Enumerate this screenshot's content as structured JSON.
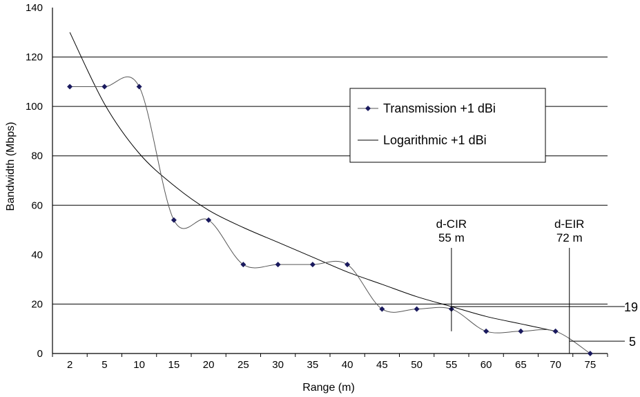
{
  "chart_data": {
    "type": "line",
    "xlabel": "Range (m)",
    "ylabel": "Bandwidth (Mbps)",
    "ylim": [
      0,
      140
    ],
    "yticks": [
      0,
      20,
      40,
      60,
      80,
      100,
      120,
      140
    ],
    "grid": "horizontal gridlines at 20, 60, 80, 100, 120",
    "categories": [
      "2",
      "5",
      "10",
      "15",
      "20",
      "25",
      "30",
      "35",
      "40",
      "45",
      "50",
      "55",
      "60",
      "65",
      "70",
      "75"
    ],
    "series": [
      {
        "name": "Transmission +1 dBi",
        "style": "smoothed line with diamond markers",
        "color": "#1a1a5e",
        "values": [
          108,
          108,
          108,
          54,
          54,
          36,
          36,
          36,
          36,
          18,
          18,
          18,
          9,
          9,
          9,
          0
        ]
      },
      {
        "name": "Logarithmic +1 dBi",
        "style": "thin trend line, no markers",
        "color": "#000000",
        "values": [
          130,
          101,
          81,
          68,
          58,
          51,
          45,
          39,
          33,
          28,
          23,
          19,
          15,
          12,
          9,
          6
        ]
      }
    ],
    "legend": {
      "position": "upper-right",
      "entries": [
        "Transmission +1 dBi",
        "Logarithmic +1 dBi"
      ]
    },
    "annotations": [
      {
        "line1": "d-CIR",
        "line2": "55 m",
        "x": 55
      },
      {
        "line1": "d-EIR",
        "line2": "72 m",
        "x": 72
      }
    ],
    "reference_values": [
      {
        "label": "19",
        "y": 19
      },
      {
        "label": "5",
        "y": 5
      }
    ]
  }
}
